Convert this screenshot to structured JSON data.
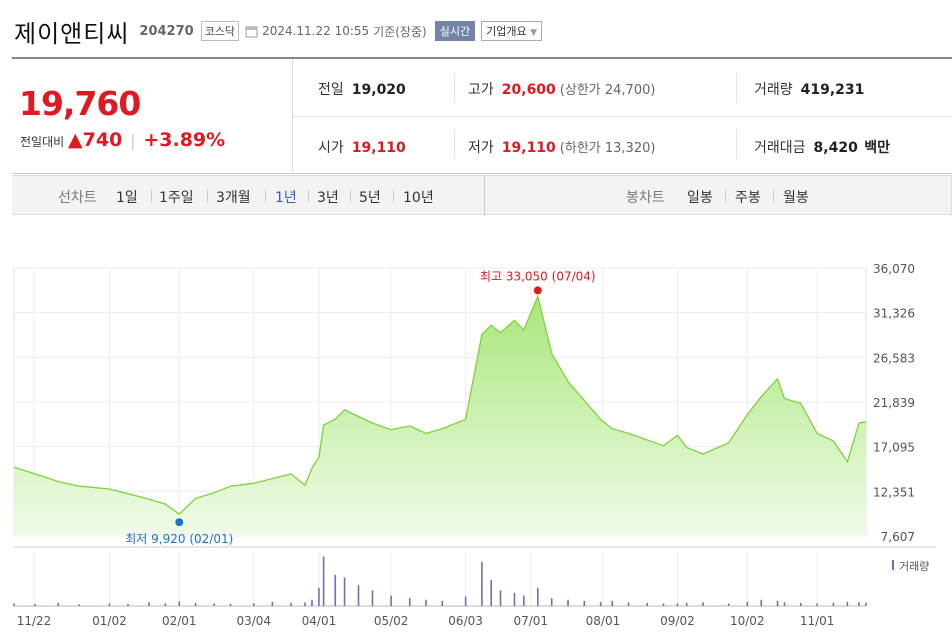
{
  "header": {
    "name": "제이앤티씨",
    "code": "204270",
    "market": "코스닥",
    "datetime": "2024.11.22 10:55",
    "basis": "기준(장중)",
    "realtime_label": "실시간",
    "overview_label": "기업개요"
  },
  "price": {
    "current": "19,760",
    "change_label": "전일대비",
    "change": "740",
    "change_pct": "+3.89%"
  },
  "summary": {
    "prev_label": "전일",
    "prev": "19,020",
    "high_label": "고가",
    "high": "20,600",
    "upper_limit": "(상한가 24,700)",
    "volume_label": "거래량",
    "volume": "419,231",
    "open_label": "시가",
    "open": "19,110",
    "low_label": "저가",
    "low": "19,110",
    "lower_limit": "(하한가 13,320)",
    "amount_label": "거래대금",
    "amount": "8,420",
    "amount_unit": "백만"
  },
  "controls": {
    "line_label": "선차트",
    "line_periods": [
      "1일",
      "1주일",
      "3개월",
      "1년",
      "3년",
      "5년",
      "10년"
    ],
    "active_period": "1년",
    "candle_label": "봉차트",
    "candle_periods": [
      "일봉",
      "주봉",
      "월봉"
    ]
  },
  "colors": {
    "up": "#e0181f",
    "line": "#7dd23a",
    "area_top": "#b4ec8a",
    "low_marker": "#1f6fd1",
    "high_marker": "#e0181f",
    "volume": "#7a6bb0",
    "active_tab": "#2f5db8"
  },
  "chart_data": {
    "type": "area",
    "period": "1년",
    "y_ticks": [
      "36,070",
      "31,326",
      "26,583",
      "21,839",
      "17,095",
      "12,351",
      "7,607"
    ],
    "ylim": [
      7607,
      36070
    ],
    "x_ticks": [
      "11/22",
      "01/02",
      "02/01",
      "03/04",
      "04/01",
      "05/02",
      "06/03",
      "07/01",
      "08/01",
      "09/02",
      "10/02",
      "11/01"
    ],
    "max_label": "최고 33,050 (07/04)",
    "min_label": "최저 9,920 (02/01)",
    "max_point": {
      "x": "07/04",
      "y": 33050
    },
    "min_point": {
      "x": "02/01",
      "y": 9920
    },
    "volume_legend": "거래량",
    "series": [
      {
        "x": [
          "2023-11-22",
          "2023-12-01",
          "2023-12-11",
          "2023-12-20",
          "2024-01-02",
          "2024-01-10",
          "2024-01-19",
          "2024-01-26",
          "2024-02-01",
          "2024-02-08",
          "2024-02-16",
          "2024-02-23",
          "2024-03-04",
          "2024-03-12",
          "2024-03-20",
          "2024-03-26",
          "2024-03-29",
          "2024-04-01",
          "2024-04-03",
          "2024-04-08",
          "2024-04-12",
          "2024-04-18",
          "2024-04-24",
          "2024-05-02",
          "2024-05-10",
          "2024-05-17",
          "2024-05-24",
          "2024-06-03",
          "2024-06-10",
          "2024-06-14",
          "2024-06-18",
          "2024-06-24",
          "2024-06-28",
          "2024-07-04",
          "2024-07-10",
          "2024-07-17",
          "2024-07-24",
          "2024-07-31",
          "2024-08-05",
          "2024-08-12",
          "2024-08-20",
          "2024-08-27",
          "2024-09-02",
          "2024-09-06",
          "2024-09-13",
          "2024-09-24",
          "2024-10-02",
          "2024-10-08",
          "2024-10-15",
          "2024-10-18",
          "2024-10-25",
          "2024-11-01",
          "2024-11-08",
          "2024-11-14",
          "2024-11-19",
          "2024-11-22"
        ],
        "y": [
          14900,
          14200,
          13400,
          12900,
          12600,
          12100,
          11500,
          11000,
          9920,
          11600,
          12200,
          12900,
          13200,
          13700,
          14200,
          13000,
          14800,
          16000,
          19400,
          20000,
          21000,
          20300,
          19600,
          18900,
          19300,
          18500,
          19000,
          20000,
          29000,
          30000,
          29200,
          30500,
          29500,
          33050,
          27000,
          24000,
          22000,
          20000,
          19000,
          18500,
          17800,
          17200,
          18300,
          17000,
          16300,
          17500,
          20500,
          22400,
          24300,
          22200,
          21700,
          18500,
          17700,
          15500,
          19600,
          19760
        ]
      }
    ],
    "volume": [
      0.05,
      0.04,
      0.06,
      0.03,
      0.05,
      0.04,
      0.07,
      0.05,
      0.09,
      0.06,
      0.05,
      0.04,
      0.05,
      0.08,
      0.06,
      0.07,
      0.12,
      0.35,
      0.95,
      0.6,
      0.55,
      0.4,
      0.3,
      0.2,
      0.15,
      0.12,
      0.1,
      0.18,
      0.85,
      0.5,
      0.3,
      0.25,
      0.2,
      0.35,
      0.15,
      0.12,
      0.1,
      0.08,
      0.1,
      0.07,
      0.06,
      0.05,
      0.05,
      0.06,
      0.07,
      0.05,
      0.08,
      0.12,
      0.1,
      0.07,
      0.06,
      0.05,
      0.06,
      0.08,
      0.07,
      0.06
    ]
  }
}
